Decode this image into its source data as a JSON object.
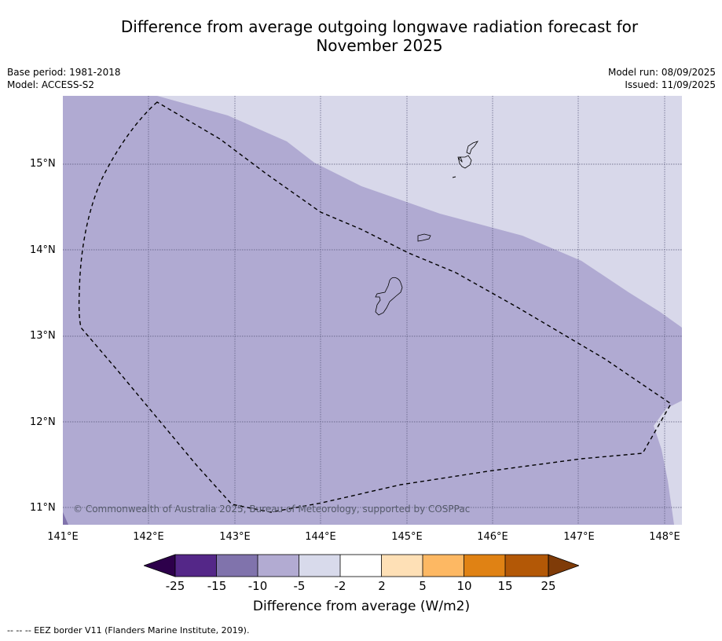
{
  "title": "Difference from average outgoing longwave radiation forecast for November 2025",
  "meta": {
    "base_period": "Base period: 1981-2018",
    "model": "Model: ACCESS-S2",
    "model_run": "Model run: 08/09/2025",
    "issued": "Issued: 11/09/2025"
  },
  "map": {
    "lat_ticks": [
      "15°N",
      "14°N",
      "13°N",
      "12°N",
      "11°N"
    ],
    "lon_ticks": [
      "141°E",
      "142°E",
      "143°E",
      "144°E",
      "145°E",
      "146°E",
      "147°E",
      "148°E"
    ],
    "copyright": "© Commonwealth of Australia 2025, Bureau of Meteorology, supported by COSPPac",
    "colors": {
      "class_minus10_minus5": "#b0aad2",
      "class_minus5_minus2": "#d8d8ea"
    }
  },
  "colorbar": {
    "title": "Difference from average (W/m2)",
    "labels": [
      "-25",
      "-15",
      "-10",
      "-5",
      "-2",
      "2",
      "5",
      "10",
      "15",
      "25"
    ],
    "colors": [
      "#2d004b",
      "#542788",
      "#8073ac",
      "#b2abd2",
      "#d8daeb",
      "#ffffff",
      "#fee0b6",
      "#fdb863",
      "#e08214",
      "#b35806",
      "#7f3b08"
    ]
  },
  "footnote": "--  --  -- EEZ border V11 (Flanders Marine Institute, 2019)."
}
